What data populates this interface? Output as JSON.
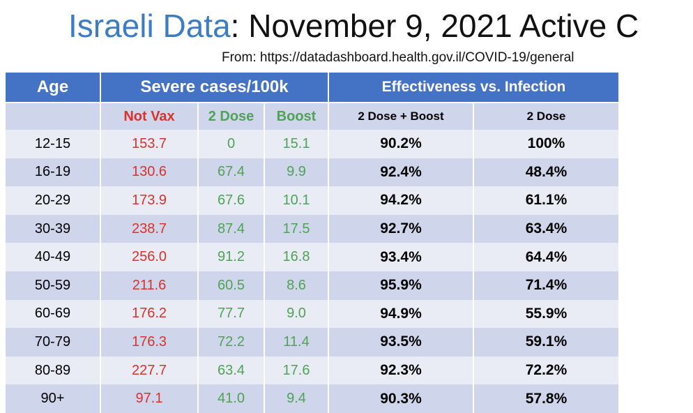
{
  "title": {
    "highlight": "Israeli Data",
    "rest": ": November 9, 2021 Active C"
  },
  "source": "From: https://datadashboard.health.gov.il/COVID-19/general",
  "table": {
    "header": [
      "Age",
      "Severe cases/100k",
      "Effectiveness vs. Infection"
    ],
    "subheader": [
      "Not Vax",
      "2 Dose",
      "Boost",
      "2 Dose + Boost",
      "2 Dose"
    ],
    "rows": [
      [
        "12-15",
        "153.7",
        "0",
        "15.1",
        "90.2%",
        "100%"
      ],
      [
        "16-19",
        "130.6",
        "67.4",
        "9.9",
        "92.4%",
        "48.4%"
      ],
      [
        "20-29",
        "173.9",
        "67.6",
        "10.1",
        "94.2%",
        "61.1%"
      ],
      [
        "30-39",
        "238.7",
        "87.4",
        "17.5",
        "92.7%",
        "63.4%"
      ],
      [
        "40-49",
        "256.0",
        "91.2",
        "16.8",
        "93.4%",
        "64.4%"
      ],
      [
        "50-59",
        "211.6",
        "60.5",
        "8.6",
        "95.9%",
        "71.4%"
      ],
      [
        "60-69",
        "176.2",
        "77.7",
        "9.0",
        "94.9%",
        "55.9%"
      ],
      [
        "70-79",
        "176.3",
        "72.2",
        "11.4",
        "93.5%",
        "59.1%"
      ],
      [
        "80-89",
        "227.7",
        "63.4",
        "17.6",
        "92.3%",
        "72.2%"
      ],
      [
        "90+",
        "97.1",
        "41.0",
        "9.4",
        "90.3%",
        "57.8%"
      ]
    ]
  }
}
